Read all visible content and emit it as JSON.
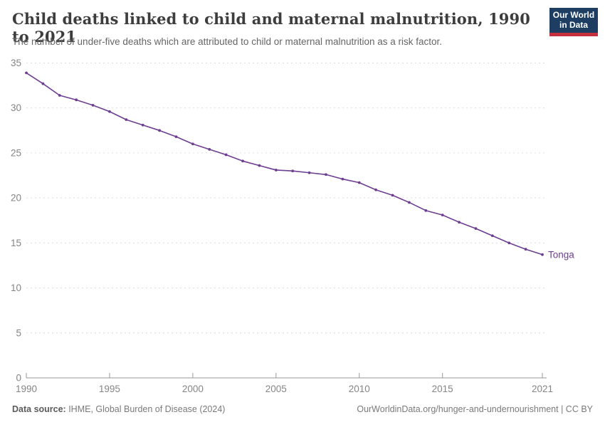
{
  "header": {
    "title": "Child deaths linked to child and maternal malnutrition, 1990 to 2021",
    "subtitle": "The number of under-five deaths which are attributed to child or maternal malnutrition as a risk factor."
  },
  "logo": {
    "line1": "Our World",
    "line2": "in Data",
    "bg_color": "#1d3d63",
    "accent_color": "#c5303e"
  },
  "chart_data": {
    "type": "line",
    "title": "Child deaths linked to child and maternal malnutrition, 1990 to 2021",
    "xlabel": "",
    "ylabel": "",
    "xlim": [
      1990,
      2021
    ],
    "ylim": [
      0,
      35
    ],
    "x_ticks": [
      1990,
      1995,
      2000,
      2005,
      2010,
      2015,
      2021
    ],
    "y_ticks": [
      0,
      5,
      10,
      15,
      20,
      25,
      30,
      35
    ],
    "grid": "horizontal-dashed",
    "legend_position": "end-of-line-label",
    "x": [
      1990,
      1991,
      1992,
      1993,
      1994,
      1995,
      1996,
      1997,
      1998,
      1999,
      2000,
      2001,
      2002,
      2003,
      2004,
      2005,
      2006,
      2007,
      2008,
      2009,
      2010,
      2011,
      2012,
      2013,
      2014,
      2015,
      2016,
      2017,
      2018,
      2019,
      2020,
      2021
    ],
    "series": [
      {
        "name": "Tonga",
        "color": "#6d3e91",
        "values": [
          33.9,
          32.7,
          31.4,
          30.9,
          30.3,
          29.6,
          28.7,
          28.1,
          27.5,
          26.8,
          26.0,
          25.4,
          24.8,
          24.1,
          23.6,
          23.1,
          23.0,
          22.8,
          22.6,
          22.1,
          21.7,
          20.9,
          20.3,
          19.5,
          18.6,
          18.1,
          17.3,
          16.6,
          15.8,
          15.0,
          14.3,
          13.7
        ]
      }
    ],
    "colors": {
      "gridline": "#dcdcdc",
      "axis": "#999999",
      "tick_label": "#858585"
    }
  },
  "footer": {
    "source_label": "Data source:",
    "source_text": " IHME, Global Burden of Disease (2024)",
    "url_text": "OurWorldinData.org/hunger-and-undernourishment | CC BY"
  }
}
